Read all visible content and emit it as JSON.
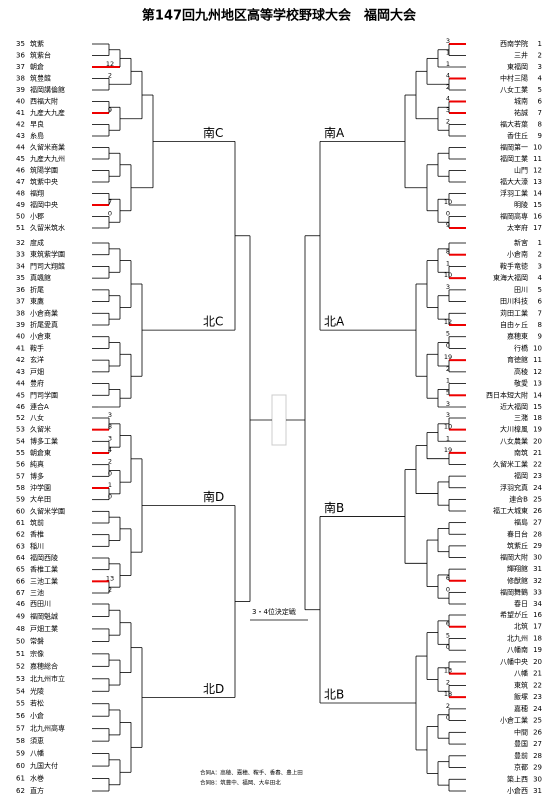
{
  "title": "第147回九州地区高等学校野球大会　福岡大会",
  "left": [
    {
      "label": "南C",
      "teams": [
        {
          "no": 35,
          "name": "筑紫"
        },
        {
          "no": 36,
          "name": "筑紫台"
        },
        {
          "no": 37,
          "name": "朝倉",
          "score": 12,
          "win": true
        },
        {
          "no": 38,
          "name": "筑豊館",
          "score": 2
        },
        {
          "no": 39,
          "name": "福岡講倫館"
        },
        {
          "no": 40,
          "name": "西福大附"
        },
        {
          "no": 41,
          "name": "九産大九産",
          "score": 9,
          "win": true
        },
        {
          "no": 42,
          "name": "早良"
        },
        {
          "no": 43,
          "name": "糸島"
        },
        {
          "no": 44,
          "name": "久留米商業"
        },
        {
          "no": 45,
          "name": "九産大九州"
        },
        {
          "no": 46,
          "name": "筑陽学園"
        },
        {
          "no": 47,
          "name": "筑紫中央"
        },
        {
          "no": 48,
          "name": "福翔"
        },
        {
          "no": 49,
          "name": "福岡中央",
          "score": 7,
          "win": true
        },
        {
          "no": 50,
          "name": "小郡",
          "score": 0
        },
        {
          "no": 51,
          "name": "久留米筑水"
        }
      ]
    },
    {
      "label": "北C",
      "teams": [
        {
          "no": 32,
          "name": "度成"
        },
        {
          "no": 33,
          "name": "東筑紫学園"
        },
        {
          "no": 34,
          "name": "門司大翔館"
        },
        {
          "no": 35,
          "name": "真颯館"
        },
        {
          "no": 36,
          "name": "折尾"
        },
        {
          "no": 37,
          "name": "東鷹"
        },
        {
          "no": 38,
          "name": "小倉商業"
        },
        {
          "no": 39,
          "name": "折尾愛真"
        },
        {
          "no": 40,
          "name": "小倉東"
        },
        {
          "no": 41,
          "name": "鞍手"
        },
        {
          "no": 42,
          "name": "玄洋"
        },
        {
          "no": 43,
          "name": "戸畑"
        },
        {
          "no": 44,
          "name": "豊府"
        },
        {
          "no": 45,
          "name": "門司学園"
        },
        {
          "no": 46,
          "name": "連合A"
        }
      ]
    },
    {
      "label": "南D",
      "teams": [
        {
          "no": 52,
          "name": "八女",
          "score": 3
        },
        {
          "no": 53,
          "name": "久留米",
          "score": 8,
          "win": true
        },
        {
          "no": 54,
          "name": "博多工業",
          "score": 3
        },
        {
          "no": 55,
          "name": "朝倉東",
          "score": 4,
          "win": true
        },
        {
          "no": 56,
          "name": "純真",
          "score": 2
        },
        {
          "no": 57,
          "name": "博多",
          "score": 0
        },
        {
          "no": 58,
          "name": "沖学園",
          "score": 1,
          "win": true
        },
        {
          "no": 59,
          "name": "大牟田",
          "score": 0
        },
        {
          "no": 60,
          "name": "久留米学園"
        },
        {
          "no": 61,
          "name": "筑前"
        },
        {
          "no": 62,
          "name": "香椎"
        },
        {
          "no": 63,
          "name": "稲川"
        },
        {
          "no": 64,
          "name": "福岡西陵"
        },
        {
          "no": 65,
          "name": "香椎工業"
        },
        {
          "no": 66,
          "name": "三池工業",
          "score": 13,
          "win": true
        },
        {
          "no": 67,
          "name": "三池",
          "score": 2
        }
      ]
    },
    {
      "label": "北D",
      "teams": [
        {
          "no": 46,
          "name": "西田川"
        },
        {
          "no": 49,
          "name": "福岡魁誠"
        },
        {
          "no": 48,
          "name": "戸畑工業"
        },
        {
          "no": 50,
          "name": "常磐"
        },
        {
          "no": 51,
          "name": "宗像"
        },
        {
          "no": 52,
          "name": "嘉穂総合"
        },
        {
          "no": 53,
          "name": "北九州市立"
        },
        {
          "no": 54,
          "name": "光陵"
        },
        {
          "no": 55,
          "name": "若松"
        },
        {
          "no": 56,
          "name": "小倉"
        },
        {
          "no": 57,
          "name": "北九州高専"
        },
        {
          "no": 58,
          "name": "須恵"
        },
        {
          "no": 59,
          "name": "八幡"
        },
        {
          "no": 60,
          "name": "九国大付"
        },
        {
          "no": 61,
          "name": "水巻"
        },
        {
          "no": 62,
          "name": "直方"
        }
      ]
    }
  ],
  "right": [
    {
      "label": "南A",
      "teams": [
        {
          "no": 1,
          "name": "西南学院",
          "score": 3,
          "win": true
        },
        {
          "no": 2,
          "name": "三井",
          "score": 1
        },
        {
          "no": 3,
          "name": "東福岡",
          "score": 1
        },
        {
          "no": 4,
          "name": "中村三陽",
          "score": 4,
          "win": true
        },
        {
          "no": 5,
          "name": "八女工業",
          "score": 2
        },
        {
          "no": 6,
          "name": "城南",
          "score": 4,
          "win": true
        },
        {
          "no": 7,
          "name": "祐誠",
          "score": 3,
          "win": true
        },
        {
          "no": 8,
          "name": "福大若葉",
          "score": 2
        },
        {
          "no": 9,
          "name": "香住丘"
        },
        {
          "no": 10,
          "name": "福岡第一"
        },
        {
          "no": 11,
          "name": "福岡工業"
        },
        {
          "no": 12,
          "name": "山門"
        },
        {
          "no": 13,
          "name": "福大大濠"
        },
        {
          "no": 14,
          "name": "浮羽工業"
        },
        {
          "no": 15,
          "name": "明陵",
          "score": 10
        },
        {
          "no": 16,
          "name": "福岡高専",
          "score": 0
        },
        {
          "no": 17,
          "name": "太宰府",
          "score": 9,
          "win": true
        }
      ]
    },
    {
      "label": "北A",
      "teams": [
        {
          "no": 1,
          "name": "新宮"
        },
        {
          "no": 2,
          "name": "小倉南",
          "score": 8,
          "win": true
        },
        {
          "no": 3,
          "name": "鞍手竜徳",
          "score": 1
        },
        {
          "no": 4,
          "name": "東海大福岡",
          "score": 10,
          "win": true
        },
        {
          "no": 5,
          "name": "田川",
          "score": 3
        },
        {
          "no": 6,
          "name": "田川科技"
        },
        {
          "no": 7,
          "name": "苅田工業"
        },
        {
          "no": 8,
          "name": "自由ヶ丘",
          "score": 12,
          "win": true
        },
        {
          "no": 9,
          "name": "嘉穂東",
          "score": 5
        },
        {
          "no": 10,
          "name": "行橋",
          "score": 0
        },
        {
          "no": 11,
          "name": "育徳館",
          "score": 19,
          "win": true
        },
        {
          "no": 12,
          "name": "高稜",
          "score": 2
        },
        {
          "no": 13,
          "name": "敬愛",
          "score": 1
        },
        {
          "no": 14,
          "name": "西日本短大附",
          "score": 5,
          "win": true
        },
        {
          "no": 15,
          "name": "近大福岡",
          "score": 3
        }
      ]
    },
    {
      "label": "南B",
      "teams": [
        {
          "no": 18,
          "name": "三潴",
          "score": 3
        },
        {
          "no": 19,
          "name": "大川樟風",
          "score": 10,
          "win": true
        },
        {
          "no": 20,
          "name": "八女農業",
          "score": 1
        },
        {
          "no": 21,
          "name": "南筑",
          "score": 19,
          "win": true
        },
        {
          "no": 22,
          "name": "久留米工業"
        },
        {
          "no": 23,
          "name": "福岡"
        },
        {
          "no": 24,
          "name": "浮羽究真"
        },
        {
          "no": 25,
          "name": "連合B"
        },
        {
          "no": 26,
          "name": "福工大城東"
        },
        {
          "no": 27,
          "name": "福島"
        },
        {
          "no": 28,
          "name": "春日台"
        },
        {
          "no": 29,
          "name": "筑紫丘"
        },
        {
          "no": 30,
          "name": "福岡大附"
        },
        {
          "no": 31,
          "name": "輝翔館"
        },
        {
          "no": 32,
          "name": "修猷館",
          "score": 6,
          "win": true
        },
        {
          "no": 33,
          "name": "福岡舞鶴",
          "score": 0
        },
        {
          "no": 34,
          "name": "春日"
        }
      ]
    },
    {
      "label": "北B",
      "teams": [
        {
          "no": 16,
          "name": "希望が丘"
        },
        {
          "no": 17,
          "name": "北筑",
          "score": 6,
          "win": true
        },
        {
          "no": 18,
          "name": "北九州",
          "score": 5
        },
        {
          "no": 19,
          "name": "八幡南",
          "score": 0
        },
        {
          "no": 20,
          "name": "八幡中央"
        },
        {
          "no": 21,
          "name": "八幡",
          "score": 13,
          "win": true
        },
        {
          "no": 22,
          "name": "東筑",
          "score": 2
        },
        {
          "no": 23,
          "name": "飯塚",
          "score": 18,
          "win": true
        },
        {
          "no": 24,
          "name": "嘉穂",
          "score": 2
        },
        {
          "no": 25,
          "name": "小倉工業",
          "score": 0
        },
        {
          "no": 26,
          "name": "中間"
        },
        {
          "no": 27,
          "name": "豊国"
        },
        {
          "no": 28,
          "name": "豊前"
        },
        {
          "no": 29,
          "name": "京都"
        },
        {
          "no": 30,
          "name": "築上西"
        },
        {
          "no": 31,
          "name": "小倉西"
        }
      ]
    }
  ],
  "third_place": "3・4位決定戦",
  "notes": [
    "合同A：高稜、嘉穂、鞍手、香春、豊上田",
    "合同B：筑豊中、福岡、大牟田北"
  ]
}
